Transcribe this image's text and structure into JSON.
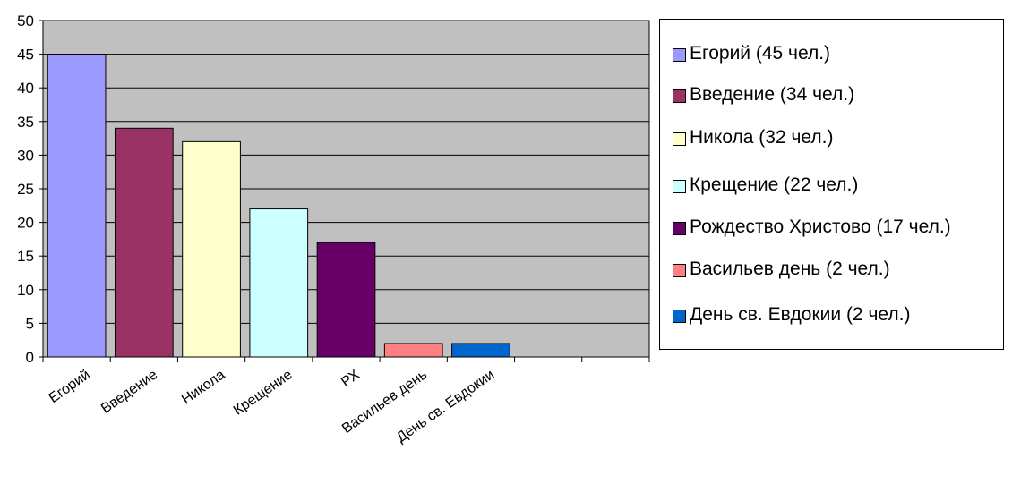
{
  "chart_data": {
    "type": "bar",
    "categories": [
      "Егорий",
      "Введение",
      "Никола",
      "Крещение",
      "РХ",
      "Васильев день",
      "День св. Евдокии"
    ],
    "values": [
      45,
      34,
      32,
      22,
      17,
      2,
      2
    ],
    "colors": [
      "#9999ff",
      "#993366",
      "#ffffcc",
      "#ccffff",
      "#660066",
      "#ff8080",
      "#0066cc"
    ],
    "ylim": [
      0,
      50
    ],
    "yticks": [
      "0",
      "5",
      "10",
      "15",
      "20",
      "25",
      "30",
      "35",
      "40",
      "45",
      "50"
    ],
    "grid": true,
    "plot_background": "#c0c0c0",
    "legend_position": "right",
    "legend": [
      "Егорий (45 чел.)",
      "Введение (34 чел.)",
      "Никола (32 чел.)",
      "Крещение (22 чел.)",
      "Рождество Христово (17 чел.)",
      "Васильев день (2 чел.)",
      "День св. Евдокии (2 чел.)"
    ]
  }
}
